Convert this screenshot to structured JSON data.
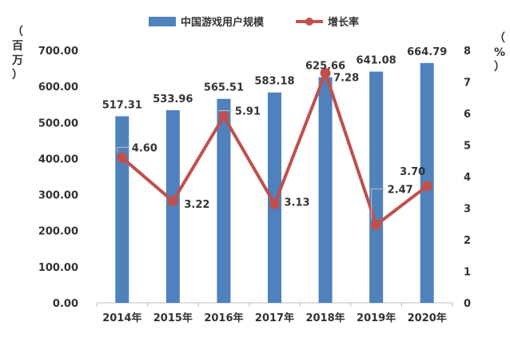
{
  "chart_data": {
    "type": "bar",
    "categories": [
      "2014年",
      "2015年",
      "2016年",
      "2017年",
      "2018年",
      "2019年",
      "2020年"
    ],
    "series": [
      {
        "name": "中国游戏用户规模",
        "type": "bar",
        "axis": "left",
        "color": "#4f81bd",
        "values": [
          517.31,
          533.96,
          565.51,
          583.18,
          625.66,
          641.08,
          664.79
        ],
        "labels": [
          "517.31",
          "533.96",
          "565.51",
          "583.18",
          "625.66",
          "641.08",
          "664.79"
        ]
      },
      {
        "name": "增长率",
        "type": "line",
        "axis": "right",
        "color": "#c0504d",
        "values": [
          4.6,
          3.22,
          5.91,
          3.13,
          7.28,
          2.47,
          3.7
        ],
        "labels": [
          "4.60",
          "3.22",
          "5.91",
          "3.13",
          "7.28",
          "2.47",
          "3.70"
        ]
      }
    ],
    "y_left": {
      "label": "（百万）",
      "min": 0,
      "max": 700,
      "ticks": [
        "0.00",
        "100.00",
        "200.00",
        "300.00",
        "400.00",
        "500.00",
        "600.00",
        "700.00"
      ]
    },
    "y_right": {
      "label": "（%）",
      "min": 0,
      "max": 8,
      "ticks": [
        "0",
        "1",
        "2",
        "3",
        "4",
        "5",
        "6",
        "7",
        "8"
      ]
    },
    "legend_position": "top-center",
    "grid": false
  }
}
